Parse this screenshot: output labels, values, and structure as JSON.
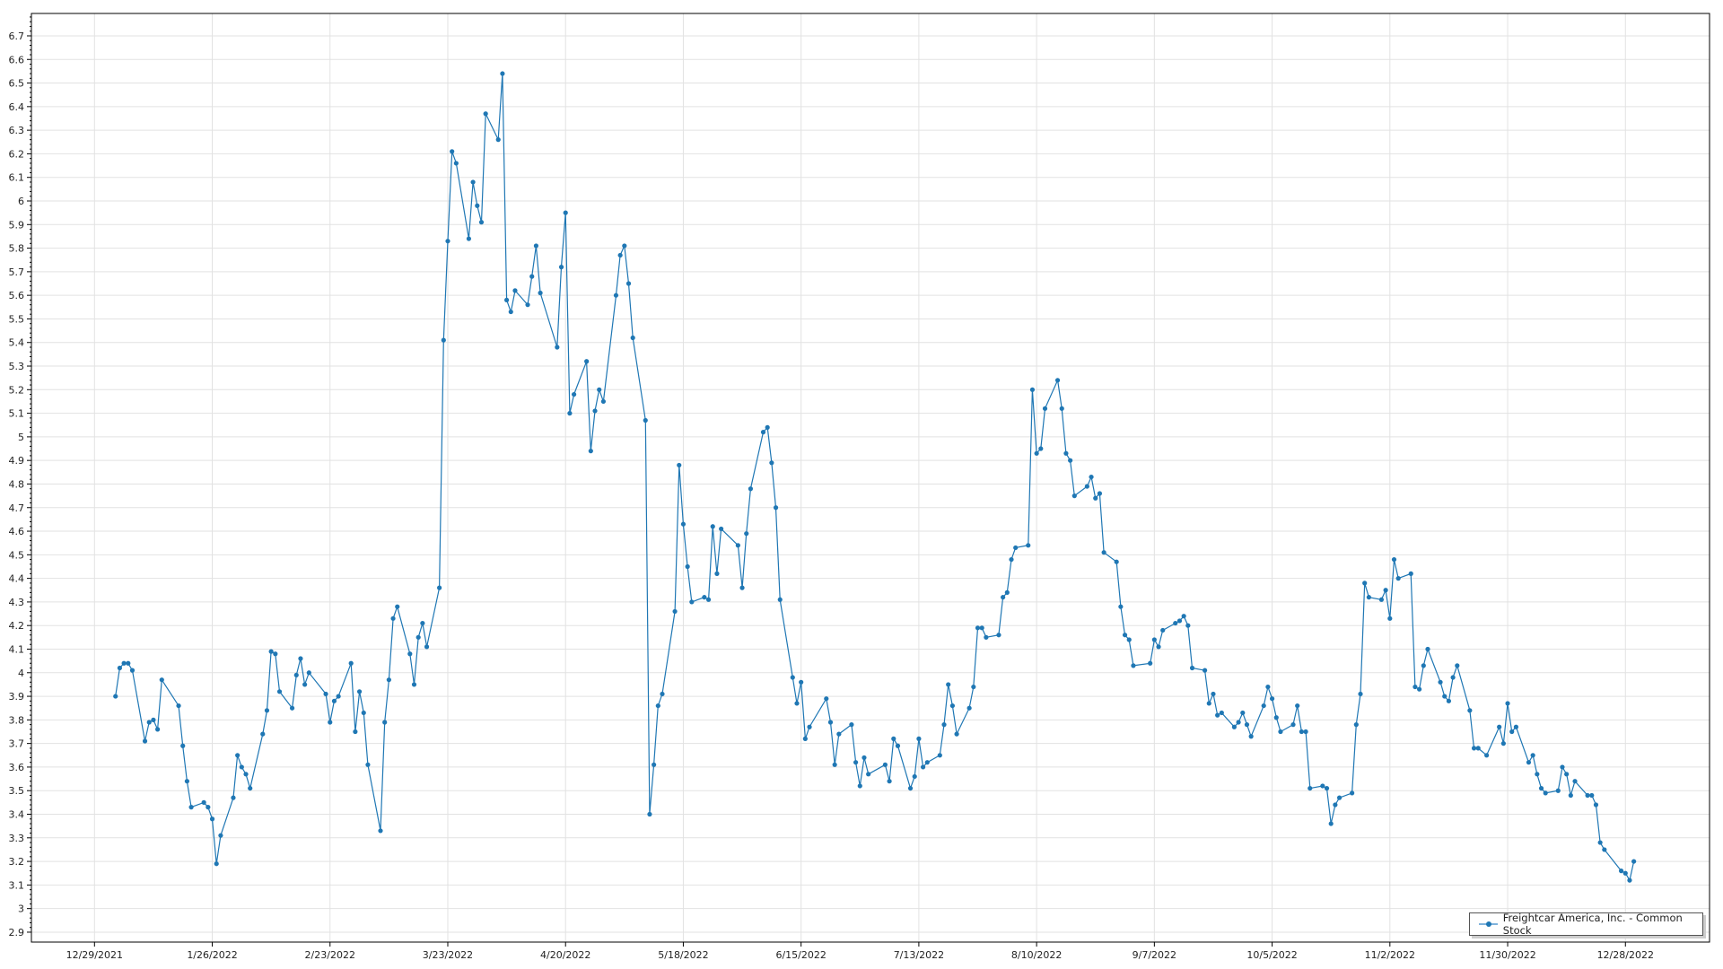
{
  "chart_data": {
    "type": "line",
    "title": "",
    "xlabel": "",
    "ylabel": "",
    "ylim": [
      2.858,
      6.795
    ],
    "xlim": [
      "2021-12-14",
      "2023-01-17"
    ],
    "grid": true,
    "legend_position": "bottom-right",
    "color": "#1f77b4",
    "y_ticks": [
      "2.9",
      "3",
      "3.1",
      "3.2",
      "3.3",
      "3.4",
      "3.5",
      "3.6",
      "3.7",
      "3.8",
      "3.9",
      "4",
      "4.1",
      "4.2",
      "4.3",
      "4.4",
      "4.5",
      "4.6",
      "4.7",
      "4.8",
      "4.9",
      "5",
      "5.1",
      "5.2",
      "5.3",
      "5.4",
      "5.5",
      "5.6",
      "5.7",
      "5.8",
      "5.9",
      "6",
      "6.1",
      "6.2",
      "6.3",
      "6.4",
      "6.5",
      "6.6",
      "6.7"
    ],
    "x_ticks": [
      "12/29/2021",
      "1/26/2022",
      "2/23/2022",
      "3/23/2022",
      "4/20/2022",
      "5/18/2022",
      "6/15/2022",
      "7/13/2022",
      "8/10/2022",
      "9/7/2022",
      "10/5/2022",
      "11/2/2022",
      "11/30/2022",
      "12/28/2022"
    ],
    "series": [
      {
        "name": "Freightcar America, Inc. - Common Stock",
        "x": [
          "2022-01-03",
          "2022-01-04",
          "2022-01-05",
          "2022-01-06",
          "2022-01-07",
          "2022-01-10",
          "2022-01-11",
          "2022-01-12",
          "2022-01-13",
          "2022-01-14",
          "2022-01-18",
          "2022-01-19",
          "2022-01-20",
          "2022-01-21",
          "2022-01-24",
          "2022-01-25",
          "2022-01-26",
          "2022-01-27",
          "2022-01-28",
          "2022-01-31",
          "2022-02-01",
          "2022-02-02",
          "2022-02-03",
          "2022-02-04",
          "2022-02-07",
          "2022-02-08",
          "2022-02-09",
          "2022-02-10",
          "2022-02-11",
          "2022-02-14",
          "2022-02-15",
          "2022-02-16",
          "2022-02-17",
          "2022-02-18",
          "2022-02-22",
          "2022-02-23",
          "2022-02-24",
          "2022-02-25",
          "2022-02-28",
          "2022-03-01",
          "2022-03-02",
          "2022-03-03",
          "2022-03-04",
          "2022-03-07",
          "2022-03-08",
          "2022-03-09",
          "2022-03-10",
          "2022-03-11",
          "2022-03-14",
          "2022-03-15",
          "2022-03-16",
          "2022-03-17",
          "2022-03-18",
          "2022-03-21",
          "2022-03-22",
          "2022-03-23",
          "2022-03-24",
          "2022-03-25",
          "2022-03-28",
          "2022-03-29",
          "2022-03-30",
          "2022-03-31",
          "2022-04-01",
          "2022-04-04",
          "2022-04-05",
          "2022-04-06",
          "2022-04-07",
          "2022-04-08",
          "2022-04-11",
          "2022-04-12",
          "2022-04-13",
          "2022-04-14",
          "2022-04-18",
          "2022-04-19",
          "2022-04-20",
          "2022-04-21",
          "2022-04-22",
          "2022-04-25",
          "2022-04-26",
          "2022-04-27",
          "2022-04-28",
          "2022-04-29",
          "2022-05-02",
          "2022-05-03",
          "2022-05-04",
          "2022-05-05",
          "2022-05-06",
          "2022-05-09",
          "2022-05-10",
          "2022-05-11",
          "2022-05-12",
          "2022-05-13",
          "2022-05-16",
          "2022-05-17",
          "2022-05-18",
          "2022-05-19",
          "2022-05-20",
          "2022-05-23",
          "2022-05-24",
          "2022-05-25",
          "2022-05-26",
          "2022-05-27",
          "2022-05-31",
          "2022-06-01",
          "2022-06-02",
          "2022-06-03",
          "2022-06-06",
          "2022-06-07",
          "2022-06-08",
          "2022-06-09",
          "2022-06-10",
          "2022-06-13",
          "2022-06-14",
          "2022-06-15",
          "2022-06-16",
          "2022-06-17",
          "2022-06-21",
          "2022-06-22",
          "2022-06-23",
          "2022-06-24",
          "2022-06-27",
          "2022-06-28",
          "2022-06-29",
          "2022-06-30",
          "2022-07-01",
          "2022-07-05",
          "2022-07-06",
          "2022-07-07",
          "2022-07-08",
          "2022-07-11",
          "2022-07-12",
          "2022-07-13",
          "2022-07-14",
          "2022-07-15",
          "2022-07-18",
          "2022-07-19",
          "2022-07-20",
          "2022-07-21",
          "2022-07-22",
          "2022-07-25",
          "2022-07-26",
          "2022-07-27",
          "2022-07-28",
          "2022-07-29",
          "2022-08-01",
          "2022-08-02",
          "2022-08-03",
          "2022-08-04",
          "2022-08-05",
          "2022-08-08",
          "2022-08-09",
          "2022-08-10",
          "2022-08-11",
          "2022-08-12",
          "2022-08-15",
          "2022-08-16",
          "2022-08-17",
          "2022-08-18",
          "2022-08-19",
          "2022-08-22",
          "2022-08-23",
          "2022-08-24",
          "2022-08-25",
          "2022-08-26",
          "2022-08-29",
          "2022-08-30",
          "2022-08-31",
          "2022-09-01",
          "2022-09-02",
          "2022-09-06",
          "2022-09-07",
          "2022-09-08",
          "2022-09-09",
          "2022-09-12",
          "2022-09-13",
          "2022-09-14",
          "2022-09-15",
          "2022-09-16",
          "2022-09-19",
          "2022-09-20",
          "2022-09-21",
          "2022-09-22",
          "2022-09-23",
          "2022-09-26",
          "2022-09-27",
          "2022-09-28",
          "2022-09-29",
          "2022-09-30",
          "2022-10-03",
          "2022-10-04",
          "2022-10-05",
          "2022-10-06",
          "2022-10-07",
          "2022-10-10",
          "2022-10-11",
          "2022-10-12",
          "2022-10-13",
          "2022-10-14",
          "2022-10-17",
          "2022-10-18",
          "2022-10-19",
          "2022-10-20",
          "2022-10-21",
          "2022-10-24",
          "2022-10-25",
          "2022-10-26",
          "2022-10-27",
          "2022-10-28",
          "2022-10-31",
          "2022-11-01",
          "2022-11-02",
          "2022-11-03",
          "2022-11-04",
          "2022-11-07",
          "2022-11-08",
          "2022-11-09",
          "2022-11-10",
          "2022-11-11",
          "2022-11-14",
          "2022-11-15",
          "2022-11-16",
          "2022-11-17",
          "2022-11-18",
          "2022-11-21",
          "2022-11-22",
          "2022-11-23",
          "2022-11-25",
          "2022-11-28",
          "2022-11-29",
          "2022-11-30",
          "2022-12-01",
          "2022-12-02",
          "2022-12-05",
          "2022-12-06",
          "2022-12-07",
          "2022-12-08",
          "2022-12-09",
          "2022-12-12",
          "2022-12-13",
          "2022-12-14",
          "2022-12-15",
          "2022-12-16",
          "2022-12-19",
          "2022-12-20",
          "2022-12-21",
          "2022-12-22",
          "2022-12-23",
          "2022-12-27",
          "2022-12-28",
          "2022-12-29",
          "2022-12-30"
        ],
        "y": [
          3.9,
          4.02,
          4.04,
          4.04,
          4.01,
          3.71,
          3.79,
          3.8,
          3.76,
          3.97,
          3.86,
          3.69,
          3.54,
          3.43,
          3.45,
          3.43,
          3.38,
          3.19,
          3.31,
          3.47,
          3.65,
          3.6,
          3.57,
          3.51,
          3.74,
          3.84,
          4.09,
          4.08,
          3.92,
          3.85,
          3.99,
          4.06,
          3.95,
          4.0,
          3.91,
          3.79,
          3.88,
          3.9,
          4.04,
          3.75,
          3.92,
          3.83,
          3.61,
          3.33,
          3.79,
          3.97,
          4.23,
          4.28,
          4.08,
          3.95,
          4.15,
          4.21,
          4.11,
          4.36,
          5.41,
          5.83,
          6.21,
          6.16,
          5.84,
          6.08,
          5.98,
          5.91,
          6.37,
          6.26,
          6.54,
          5.58,
          5.53,
          5.62,
          5.56,
          5.68,
          5.81,
          5.61,
          5.38,
          5.72,
          5.95,
          5.1,
          5.18,
          5.32,
          4.94,
          5.11,
          5.2,
          5.15,
          5.6,
          5.77,
          5.81,
          5.65,
          5.42,
          5.07,
          3.4,
          3.61,
          3.86,
          3.91,
          4.26,
          4.88,
          4.63,
          4.45,
          4.3,
          4.32,
          4.31,
          4.62,
          4.42,
          4.61,
          4.54,
          4.36,
          4.59,
          4.78,
          5.02,
          5.04,
          4.89,
          4.7,
          4.31,
          3.98,
          3.87,
          3.96,
          3.72,
          3.77,
          3.89,
          3.79,
          3.61,
          3.74,
          3.78,
          3.62,
          3.52,
          3.64,
          3.57,
          3.61,
          3.54,
          3.72,
          3.69,
          3.51,
          3.56,
          3.72,
          3.6,
          3.62,
          3.65,
          3.78,
          3.95,
          3.86,
          3.74,
          3.85,
          3.94,
          4.19,
          4.19,
          4.15,
          4.16,
          4.32,
          4.34,
          4.48,
          4.53,
          4.54,
          5.2,
          4.93,
          4.95,
          5.12,
          5.24,
          5.12,
          4.93,
          4.9,
          4.75,
          4.79,
          4.83,
          4.74,
          4.76,
          4.51,
          4.47,
          4.28,
          4.16,
          4.14,
          4.03,
          4.04,
          4.14,
          4.11,
          4.18,
          4.21,
          4.22,
          4.24,
          4.2,
          4.02,
          4.01,
          3.87,
          3.91,
          3.82,
          3.83,
          3.77,
          3.79,
          3.83,
          3.78,
          3.73,
          3.86,
          3.94,
          3.89,
          3.81,
          3.75,
          3.78,
          3.86,
          3.75,
          3.75,
          3.51,
          3.52,
          3.51,
          3.36,
          3.44,
          3.47,
          3.49,
          3.78,
          3.91,
          4.38,
          4.32,
          4.31,
          4.35,
          4.23,
          4.48,
          4.4,
          4.42,
          3.94,
          3.93,
          4.03,
          4.1,
          3.96,
          3.9,
          3.88,
          3.98,
          4.03,
          3.84,
          3.68,
          3.68,
          3.65,
          3.77,
          3.7,
          3.87,
          3.75,
          3.77,
          3.62,
          3.65,
          3.57,
          3.51,
          3.49,
          3.5,
          3.6,
          3.57,
          3.48,
          3.54,
          3.48,
          3.48,
          3.44,
          3.28,
          3.25,
          3.16,
          3.15,
          3.12,
          3.2
        ]
      }
    ]
  },
  "legend": {
    "label": "Freightcar America, Inc. - Common Stock"
  }
}
